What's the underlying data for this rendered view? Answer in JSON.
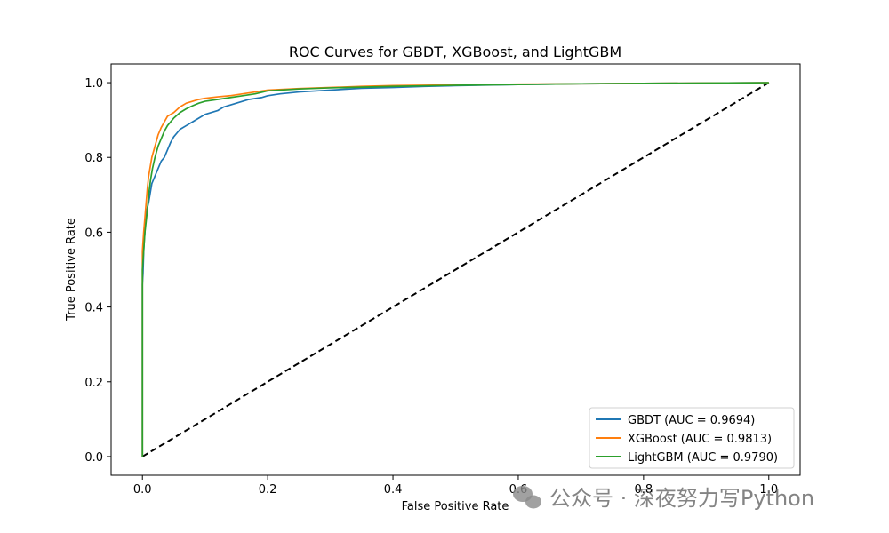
{
  "chart_data": {
    "type": "line",
    "title": "ROC Curves for GBDT, XGBoost, and LightGBM",
    "xlabel": "False Positive Rate",
    "ylabel": "True Positive Rate",
    "xlim": [
      -0.05,
      1.05
    ],
    "ylim": [
      -0.05,
      1.05
    ],
    "x_ticks": [
      0.0,
      0.2,
      0.4,
      0.6,
      0.8,
      1.0
    ],
    "y_ticks": [
      0.0,
      0.2,
      0.4,
      0.6,
      0.8,
      1.0
    ],
    "x_tick_labels": [
      "0.0",
      "0.2",
      "0.4",
      "0.6",
      "0.8",
      "1.0"
    ],
    "y_tick_labels": [
      "0.0",
      "0.2",
      "0.4",
      "0.6",
      "0.8",
      "1.0"
    ],
    "grid": false,
    "legend_position": "bottom-right",
    "series": [
      {
        "name": "GBDT (AUC = 0.9694)",
        "color": "#1f77b4",
        "x": [
          0,
          0,
          0.001,
          0.002,
          0.003,
          0.004,
          0.005,
          0.007,
          0.01,
          0.013,
          0.015,
          0.02,
          0.025,
          0.03,
          0.035,
          0.04,
          0.045,
          0.05,
          0.055,
          0.06,
          0.07,
          0.08,
          0.09,
          0.1,
          0.11,
          0.12,
          0.13,
          0.14,
          0.15,
          0.17,
          0.19,
          0.2,
          0.22,
          0.25,
          0.3,
          0.35,
          0.4,
          0.45,
          0.5,
          0.6,
          0.7,
          0.8,
          0.9,
          1.0
        ],
        "y": [
          0,
          0.46,
          0.49,
          0.55,
          0.58,
          0.6,
          0.64,
          0.66,
          0.68,
          0.71,
          0.73,
          0.75,
          0.77,
          0.79,
          0.8,
          0.82,
          0.84,
          0.855,
          0.865,
          0.875,
          0.885,
          0.895,
          0.905,
          0.915,
          0.92,
          0.925,
          0.935,
          0.94,
          0.945,
          0.955,
          0.96,
          0.965,
          0.97,
          0.975,
          0.98,
          0.985,
          0.987,
          0.99,
          0.992,
          0.995,
          0.997,
          0.998,
          0.999,
          1.0
        ]
      },
      {
        "name": "XGBoost (AUC = 0.9813)",
        "color": "#ff7f0e",
        "x": [
          0,
          0,
          0.002,
          0.004,
          0.006,
          0.008,
          0.01,
          0.012,
          0.015,
          0.02,
          0.025,
          0.03,
          0.035,
          0.04,
          0.05,
          0.06,
          0.07,
          0.08,
          0.09,
          0.1,
          0.12,
          0.14,
          0.16,
          0.18,
          0.2,
          0.25,
          0.3,
          0.35,
          0.4,
          0.5,
          0.6,
          0.7,
          0.8,
          0.9,
          1.0
        ],
        "y": [
          0,
          0.55,
          0.6,
          0.64,
          0.68,
          0.72,
          0.75,
          0.77,
          0.8,
          0.83,
          0.86,
          0.88,
          0.895,
          0.91,
          0.92,
          0.935,
          0.945,
          0.95,
          0.955,
          0.958,
          0.962,
          0.965,
          0.97,
          0.975,
          0.98,
          0.984,
          0.987,
          0.99,
          0.992,
          0.994,
          0.996,
          0.997,
          0.998,
          0.999,
          1.0
        ]
      },
      {
        "name": "LightGBM (AUC = 0.9790)",
        "color": "#2ca02c",
        "x": [
          0,
          0,
          0.002,
          0.004,
          0.006,
          0.008,
          0.01,
          0.013,
          0.016,
          0.02,
          0.025,
          0.03,
          0.035,
          0.04,
          0.05,
          0.06,
          0.07,
          0.08,
          0.09,
          0.1,
          0.12,
          0.14,
          0.16,
          0.18,
          0.2,
          0.25,
          0.3,
          0.35,
          0.4,
          0.5,
          0.6,
          0.7,
          0.8,
          0.9,
          1.0
        ],
        "y": [
          0,
          0.5,
          0.55,
          0.6,
          0.63,
          0.66,
          0.7,
          0.74,
          0.77,
          0.8,
          0.83,
          0.85,
          0.87,
          0.885,
          0.905,
          0.92,
          0.93,
          0.938,
          0.945,
          0.95,
          0.955,
          0.96,
          0.965,
          0.97,
          0.978,
          0.983,
          0.986,
          0.988,
          0.99,
          0.993,
          0.995,
          0.997,
          0.998,
          0.999,
          1.0
        ]
      },
      {
        "name": "baseline",
        "color": "#000000",
        "dashed": true,
        "x": [
          0,
          1
        ],
        "y": [
          0,
          1
        ]
      }
    ]
  },
  "watermark": {
    "text": "公众号 · 深夜努力写Python",
    "icon": "wechat-icon"
  }
}
